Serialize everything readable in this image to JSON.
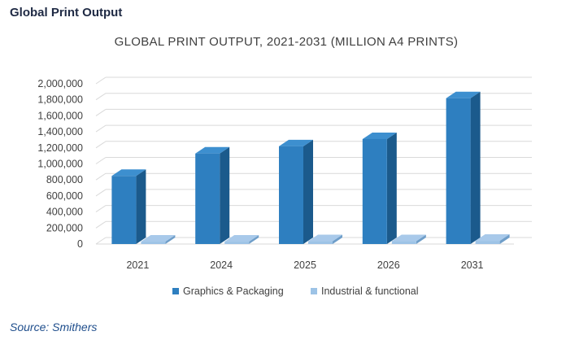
{
  "page": {
    "heading": "Global Print Output",
    "source": "Source: Smithers"
  },
  "chart_data": {
    "type": "bar",
    "title": "GLOBAL PRINT OUTPUT, 2021-2031 (MILLION A4 PRINTS)",
    "xlabel": "",
    "ylabel": "",
    "categories": [
      "2021",
      "2024",
      "2025",
      "2026",
      "2031"
    ],
    "series": [
      {
        "name": "Graphics & Packaging",
        "values": [
          850000,
          1130000,
          1220000,
          1310000,
          1820000
        ],
        "color": "#2e7fc0",
        "side_color": "#1b5a8c",
        "top_color": "#3d8fcf"
      },
      {
        "name": "Industrial &  functional",
        "values": [
          30000,
          30000,
          35000,
          35000,
          40000
        ],
        "color": "#9dc3e6",
        "side_color": "#6f9ec9",
        "top_color": "#a8c9ea"
      }
    ],
    "ylim": [
      0,
      2000000
    ],
    "yticks": [
      "0",
      "200,000",
      "400,000",
      "600,000",
      "800,000",
      "1,000,000",
      "1,200,000",
      "1,400,000",
      "1,600,000",
      "1,800,000",
      "2,000,000"
    ],
    "grid": true,
    "legend": "bottom",
    "style": "3d-clustered-column"
  }
}
